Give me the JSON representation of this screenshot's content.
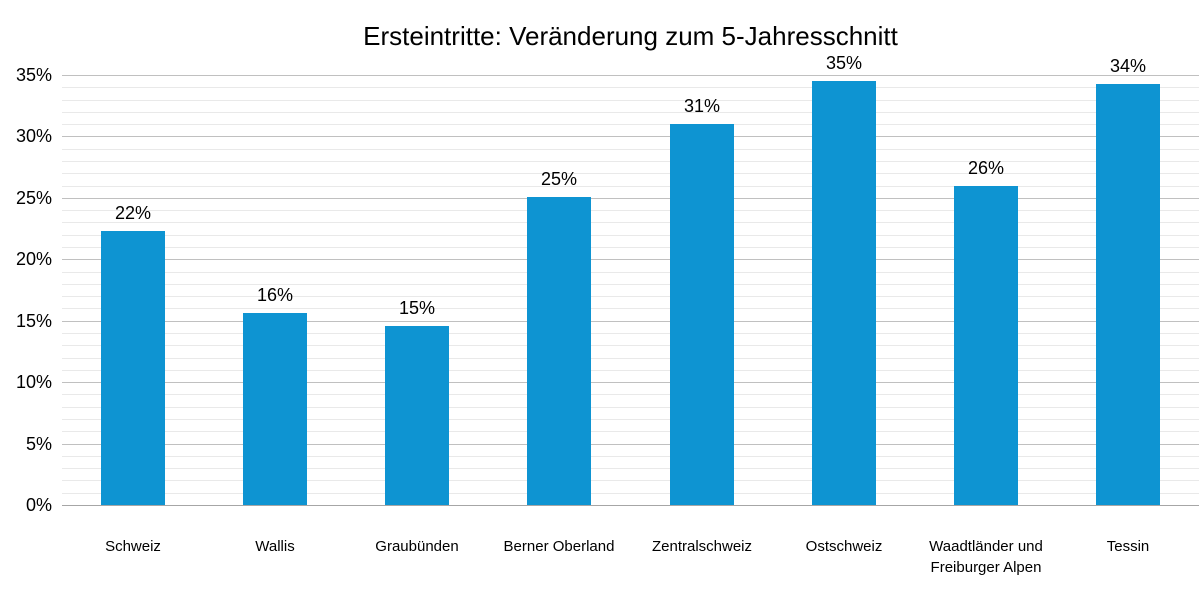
{
  "chart_data": {
    "type": "bar",
    "title": "Ersteintritte: Veränderung zum 5-Jahresschnitt",
    "categories": [
      "Schweiz",
      "Wallis",
      "Graubünden",
      "Berner Oberland",
      "Zentralschweiz",
      "Ostschweiz",
      "Waadtländer und Freiburger Alpen",
      "Tessin"
    ],
    "values": [
      22.3,
      15.6,
      14.6,
      25.1,
      31.0,
      34.5,
      26.0,
      34.3
    ],
    "value_labels": [
      "22%",
      "16%",
      "15%",
      "25%",
      "31%",
      "35%",
      "26%",
      "34%"
    ],
    "xlabel": "",
    "ylabel": "",
    "ylim": [
      0,
      35
    ],
    "y_major_step": 5,
    "y_minor_step": 1,
    "y_tick_labels": [
      "0%",
      "5%",
      "10%",
      "15%",
      "20%",
      "25%",
      "30%",
      "35%"
    ],
    "grid": "horizontal, major and minor lines",
    "legend": "none",
    "colors": {
      "bar": "#0e94d2",
      "text": "#000000",
      "grid_major": "#c0c0c0",
      "grid_minor": "#e9e9e9",
      "axis_baseline": "#a6a6a6",
      "background": "#ffffff"
    }
  }
}
